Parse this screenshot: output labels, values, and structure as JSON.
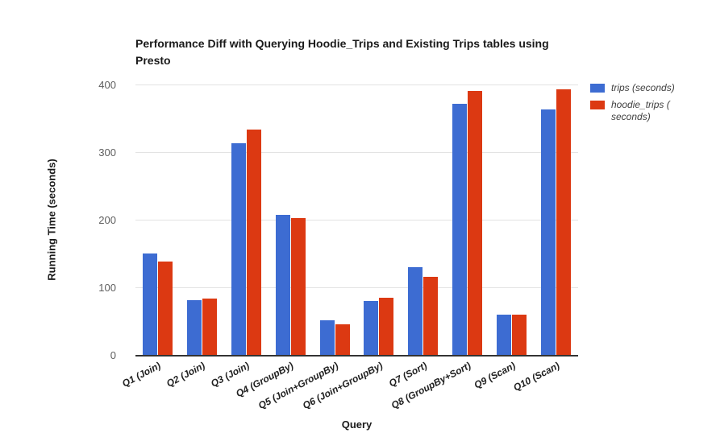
{
  "chart_data": {
    "type": "bar",
    "title": "Performance Diff with Querying Hoodie_Trips and Existing Trips tables using Presto",
    "xlabel": "Query",
    "ylabel": "Running Time (seconds)",
    "ylim": [
      0,
      400
    ],
    "yticks": [
      0,
      100,
      200,
      300,
      400
    ],
    "grid": true,
    "legend_position": "right",
    "categories": [
      "Q1 (Join)",
      "Q2 (Join)",
      "Q3 (Join)",
      "Q4 (GroupBy)",
      "Q5 (Join+GroupBy)",
      "Q6 (Join+GroupBy)",
      "Q7 (Sort)",
      "Q8 (GroupBy+Sort)",
      "Q9 (Scan)",
      "Q10 (Scan)"
    ],
    "series": [
      {
        "name": "trips (seconds)",
        "color": "#3D6CD2",
        "values": [
          150,
          81,
          313,
          207,
          51,
          80,
          130,
          372,
          60,
          363
        ]
      },
      {
        "name": "hoodie_trips (seconds)",
        "name_lines": [
          "hoodie_trips (",
          "seconds)"
        ],
        "color": "#DC3912",
        "values": [
          138,
          83,
          333,
          202,
          45,
          84,
          116,
          390,
          59,
          393
        ]
      }
    ],
    "colors": {
      "gridline": "#e3e3e3",
      "axis_line": "#333333",
      "tick_label": "#5e5e5e",
      "category_label": "#212121",
      "title_text": "#1a1a1a",
      "legend_text": "#3f3f3f"
    }
  }
}
